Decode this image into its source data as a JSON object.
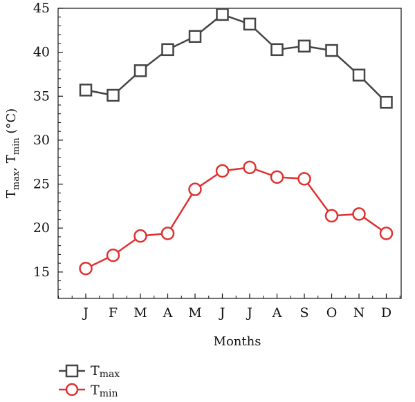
{
  "chart_data": {
    "type": "line",
    "categories": [
      "J",
      "F",
      "M",
      "A",
      "M",
      "J",
      "J",
      "A",
      "S",
      "O",
      "N",
      "D"
    ],
    "series": [
      {
        "name_base": "T",
        "name_sub": "max",
        "color": "#444444",
        "marker": "square",
        "values": [
          35.7,
          35.1,
          37.9,
          40.3,
          41.8,
          44.3,
          43.2,
          40.3,
          40.7,
          40.2,
          37.4,
          34.3
        ]
      },
      {
        "name_base": "T",
        "name_sub": "min",
        "color": "#e03131",
        "marker": "circle",
        "values": [
          15.4,
          16.9,
          19.1,
          19.4,
          24.4,
          26.5,
          26.9,
          25.8,
          25.6,
          21.4,
          21.6,
          19.4
        ]
      }
    ],
    "xlabel": "Months",
    "ylabel_parts": [
      "T",
      "max",
      ", T",
      "min",
      " (°C)"
    ],
    "ylim": [
      12,
      45
    ],
    "yticks": [
      15,
      20,
      25,
      30,
      35,
      40,
      45
    ],
    "grid": false,
    "legend_position": "bottom-left"
  }
}
